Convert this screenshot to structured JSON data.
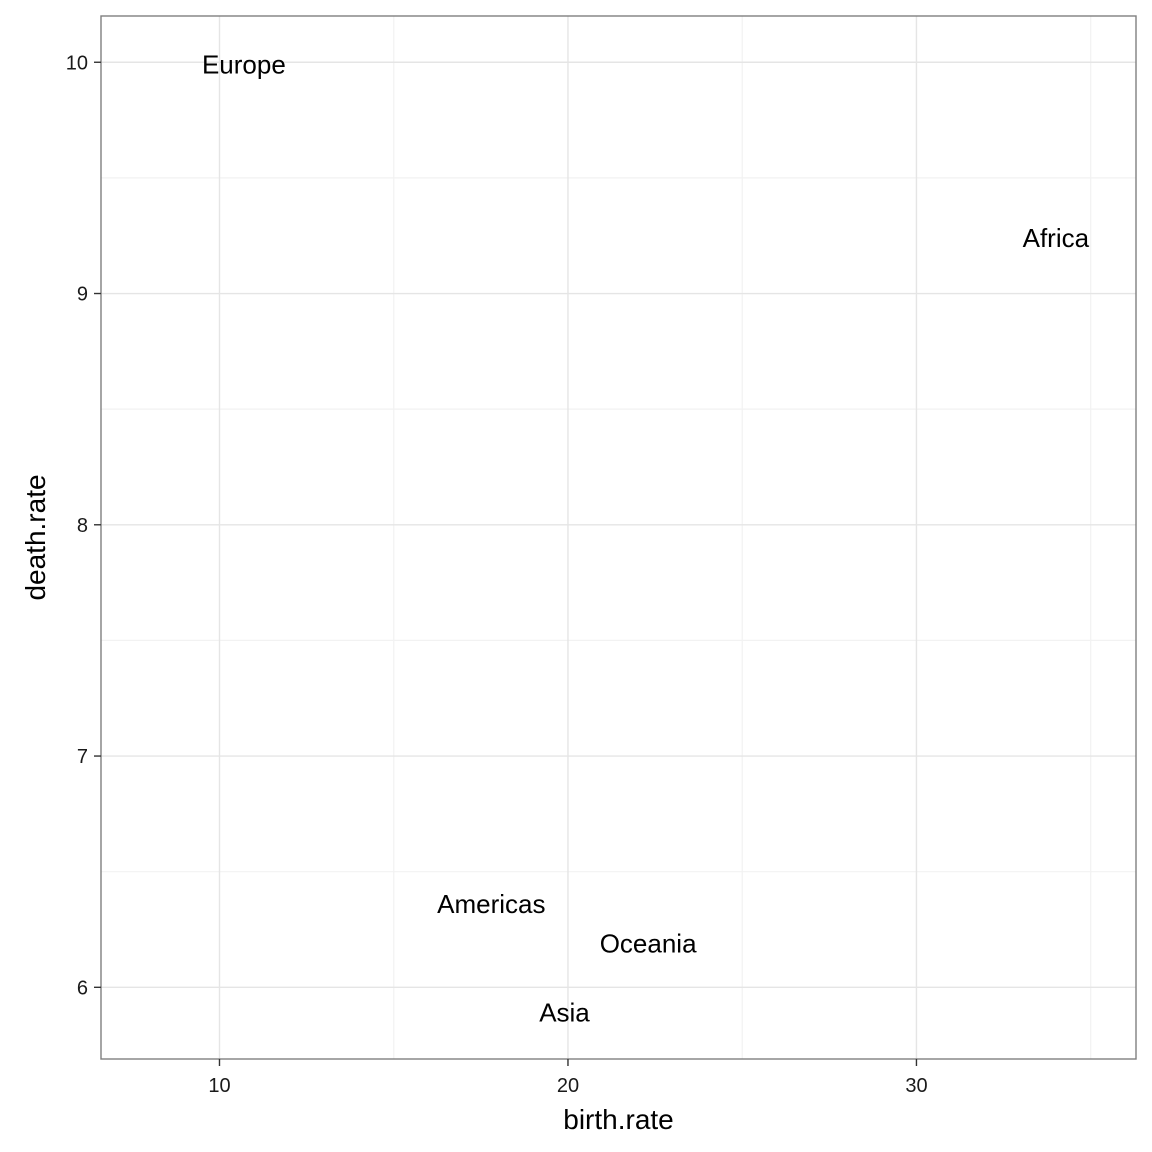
{
  "chart_data": {
    "type": "scatter",
    "title": "",
    "xlabel": "birth.rate",
    "ylabel": "death.rate",
    "xlim": [
      6.6,
      36.3
    ],
    "ylim": [
      5.69,
      10.2
    ],
    "x_ticks": [
      10,
      20,
      30
    ],
    "y_ticks": [
      6,
      7,
      8,
      9,
      10
    ],
    "x_tick_labels": [
      "10",
      "20",
      "30"
    ],
    "y_tick_labels": [
      "6",
      "7",
      "8",
      "9",
      "10"
    ],
    "grid": true,
    "legend": "none",
    "points": [
      {
        "label": "Europe",
        "x": 10.7,
        "y": 9.99
      },
      {
        "label": "Africa",
        "x": 34.0,
        "y": 9.24
      },
      {
        "label": "Americas",
        "x": 17.8,
        "y": 6.36
      },
      {
        "label": "Oceania",
        "x": 22.3,
        "y": 6.19
      },
      {
        "label": "Asia",
        "x": 19.9,
        "y": 5.89
      }
    ]
  },
  "colors": {
    "panel_border": "#7f7f7f",
    "grid_major": "#e5e5e5",
    "grid_minor": "#f2f2f2",
    "tick": "#333333",
    "text": "#000000"
  }
}
